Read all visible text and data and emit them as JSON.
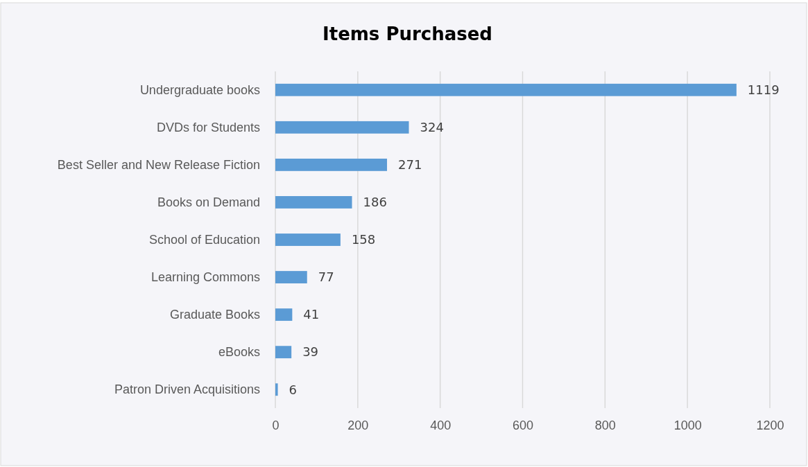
{
  "chart_data": {
    "type": "bar",
    "orientation": "horizontal",
    "title": "Items Purchased",
    "categories": [
      "Undergraduate books",
      "DVDs for Students",
      "Best Seller and New Release Fiction",
      "Books on Demand",
      "School of Education",
      "Learning Commons",
      "Graduate Books",
      "eBooks",
      "Patron Driven Acquisitions"
    ],
    "values": [
      1119,
      324,
      271,
      186,
      158,
      77,
      41,
      39,
      6
    ],
    "color": "#5b9bd5",
    "xlim": [
      0,
      1200
    ],
    "xticks": [
      0,
      200,
      400,
      600,
      800,
      1000,
      1200
    ],
    "grid": "x",
    "data_labels": true
  }
}
